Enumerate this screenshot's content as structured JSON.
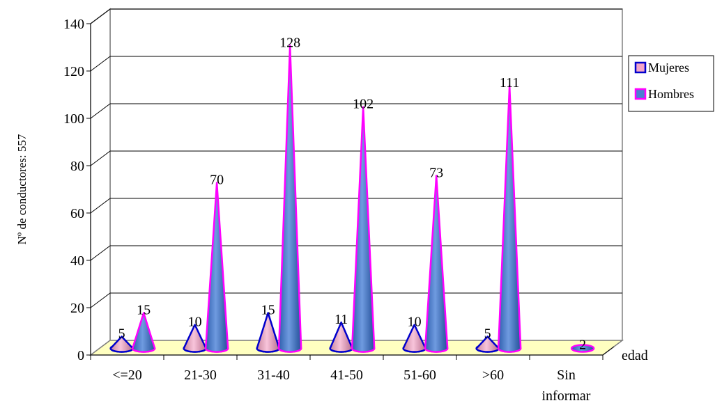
{
  "chart_data": {
    "type": "bar",
    "style": "3d-cone",
    "title": "",
    "ylabel": "Nº de conductores: 557",
    "xlabel": "edad",
    "ylim": [
      0,
      140
    ],
    "yticks": [
      0,
      20,
      40,
      60,
      80,
      100,
      120,
      140
    ],
    "grid": true,
    "legend_position": "right",
    "categories": [
      "<=20",
      "21-30",
      "31-40",
      "41-50",
      "51-60",
      ">60",
      "Sin informar"
    ],
    "category_lines": [
      [
        "<=20"
      ],
      [
        "21-30"
      ],
      [
        "31-40"
      ],
      [
        "41-50"
      ],
      [
        "51-60"
      ],
      [
        ">60"
      ],
      [
        "Sin",
        "informar"
      ]
    ],
    "series": [
      {
        "name": "Mujeres",
        "values": [
          5,
          10,
          15,
          11,
          10,
          5,
          null
        ],
        "color": "#f4a6c8",
        "edge_color": "#0000cc"
      },
      {
        "name": "Hombres",
        "values": [
          15,
          70,
          128,
          102,
          73,
          111,
          2
        ],
        "color": "#4a7fd0",
        "edge_color": "#ff00ff"
      }
    ],
    "floor_color": "#ffffc0"
  }
}
